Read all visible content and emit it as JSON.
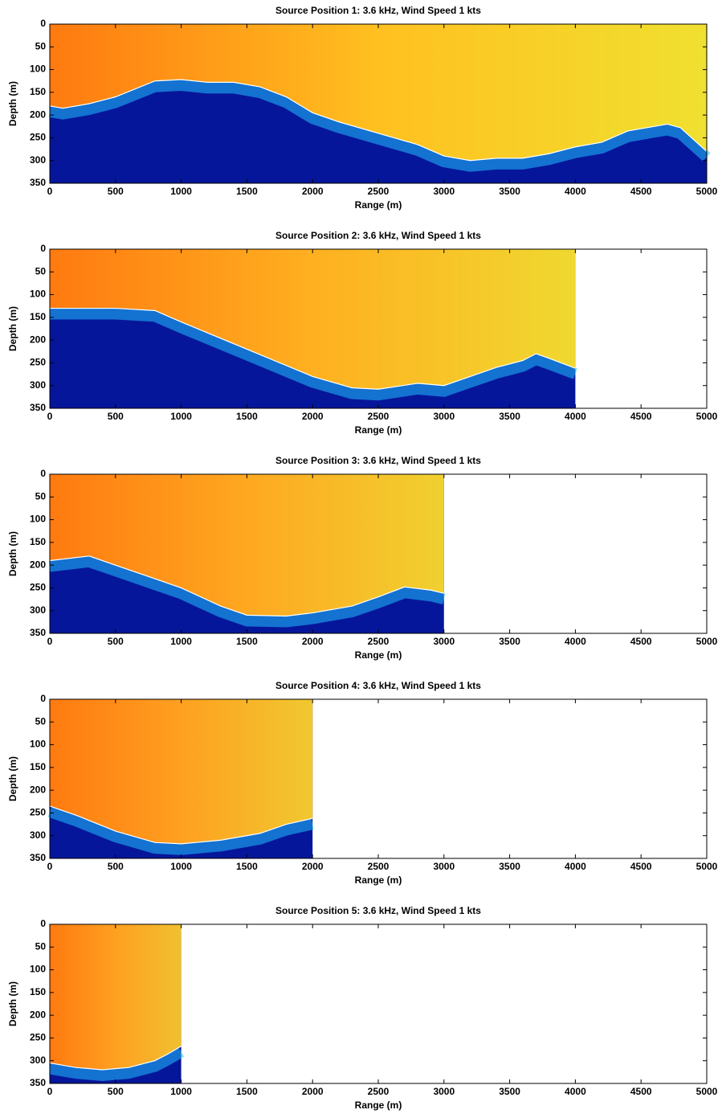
{
  "chart_data": [
    {
      "type": "field",
      "title": "Source Position 1:  3.6 kHz, Wind Speed 1 kts",
      "xlabel": "Range (m)",
      "ylabel": "Depth (m)",
      "x": [
        0,
        100,
        300,
        500,
        800,
        1000,
        1200,
        1400,
        1600,
        1800,
        2000,
        2200,
        2500,
        2800,
        3000,
        3200,
        3400,
        3600,
        3800,
        4000,
        4200,
        4400,
        4600,
        4700,
        4800,
        5000
      ],
      "values": [
        180,
        185,
        175,
        160,
        125,
        122,
        128,
        128,
        138,
        160,
        195,
        215,
        240,
        265,
        290,
        300,
        295,
        295,
        285,
        270,
        260,
        235,
        225,
        220,
        228,
        280
      ],
      "xlim": [
        0,
        5000
      ],
      "xticks": [
        0,
        500,
        1000,
        1500,
        2000,
        2500,
        3000,
        3500,
        4000,
        4500,
        5000
      ],
      "ylim": [
        0,
        350
      ],
      "yticks": [
        0,
        50,
        100,
        150,
        200,
        250,
        300,
        350
      ],
      "y_inverted": true,
      "color": "#ffffff",
      "water_colors": [
        "#ff7a10",
        "#ffc020",
        "#f0e030"
      ],
      "bottom_color": "#06169a",
      "edge_color": "#20c0ff"
    },
    {
      "type": "field",
      "title": "Source Position 2:  3.6 kHz, Wind Speed 1 kts",
      "xlabel": "Range (m)",
      "ylabel": "Depth (m)",
      "x": [
        0,
        300,
        500,
        800,
        1000,
        1500,
        2000,
        2300,
        2500,
        2800,
        3000,
        3200,
        3400,
        3600,
        3700,
        3800,
        4000
      ],
      "values": [
        130,
        130,
        130,
        135,
        160,
        220,
        280,
        305,
        308,
        295,
        300,
        280,
        260,
        245,
        230,
        240,
        262
      ],
      "xlim": [
        0,
        5000
      ],
      "xticks": [
        0,
        500,
        1000,
        1500,
        2000,
        2500,
        3000,
        3500,
        4000,
        4500,
        5000
      ],
      "ylim": [
        0,
        350
      ],
      "yticks": [
        0,
        50,
        100,
        150,
        200,
        250,
        300,
        350
      ],
      "y_inverted": true,
      "color": "#ffffff",
      "water_colors": [
        "#ff7a10",
        "#ffb020",
        "#f0d830"
      ],
      "bottom_color": "#06169a",
      "edge_color": "#20c0ff"
    },
    {
      "type": "field",
      "title": "Source Position 3:  3.6 kHz, Wind Speed 1 kts",
      "xlabel": "Range (m)",
      "ylabel": "Depth (m)",
      "x": [
        0,
        300,
        500,
        800,
        1000,
        1300,
        1500,
        1800,
        2000,
        2300,
        2500,
        2700,
        2900,
        3000
      ],
      "values": [
        190,
        180,
        200,
        230,
        250,
        290,
        310,
        312,
        305,
        290,
        270,
        248,
        255,
        262
      ],
      "xlim": [
        0,
        5000
      ],
      "xticks": [
        0,
        500,
        1000,
        1500,
        2000,
        2500,
        3000,
        3500,
        4000,
        4500,
        5000
      ],
      "ylim": [
        0,
        350
      ],
      "yticks": [
        0,
        50,
        100,
        150,
        200,
        250,
        300,
        350
      ],
      "y_inverted": true,
      "color": "#ffffff",
      "water_colors": [
        "#ff7a10",
        "#ffa820",
        "#f0d030"
      ],
      "bottom_color": "#06169a",
      "edge_color": "#20c0ff"
    },
    {
      "type": "field",
      "title": "Source Position 4:  3.6 kHz, Wind Speed 1 kts",
      "xlabel": "Range (m)",
      "ylabel": "Depth (m)",
      "x": [
        0,
        200,
        500,
        800,
        1000,
        1300,
        1600,
        1800,
        2000
      ],
      "values": [
        235,
        255,
        290,
        315,
        318,
        310,
        295,
        275,
        262
      ],
      "xlim": [
        0,
        5000
      ],
      "xticks": [
        0,
        500,
        1000,
        1500,
        2000,
        2500,
        3000,
        3500,
        4000,
        4500,
        5000
      ],
      "ylim": [
        0,
        350
      ],
      "yticks": [
        0,
        50,
        100,
        150,
        200,
        250,
        300,
        350
      ],
      "y_inverted": true,
      "color": "#ffffff",
      "water_colors": [
        "#ff7a10",
        "#ffa020",
        "#f0c830"
      ],
      "bottom_color": "#06169a",
      "edge_color": "#20c0ff"
    },
    {
      "type": "field",
      "title": "Source Position 5:  3.6 kHz, Wind Speed 1 kts",
      "xlabel": "Range (m)",
      "ylabel": "Depth (m)",
      "x": [
        0,
        200,
        400,
        600,
        800,
        900,
        1000
      ],
      "values": [
        305,
        315,
        320,
        315,
        300,
        285,
        268
      ],
      "xlim": [
        0,
        5000
      ],
      "xticks": [
        0,
        500,
        1000,
        1500,
        2000,
        2500,
        3000,
        3500,
        4000,
        4500,
        5000
      ],
      "ylim": [
        0,
        350
      ],
      "yticks": [
        0,
        50,
        100,
        150,
        200,
        250,
        300,
        350
      ],
      "y_inverted": true,
      "color": "#ffffff",
      "water_colors": [
        "#ff7a10",
        "#ffa020",
        "#f0c030"
      ],
      "bottom_color": "#06169a",
      "edge_color": "#20c0ff"
    }
  ]
}
